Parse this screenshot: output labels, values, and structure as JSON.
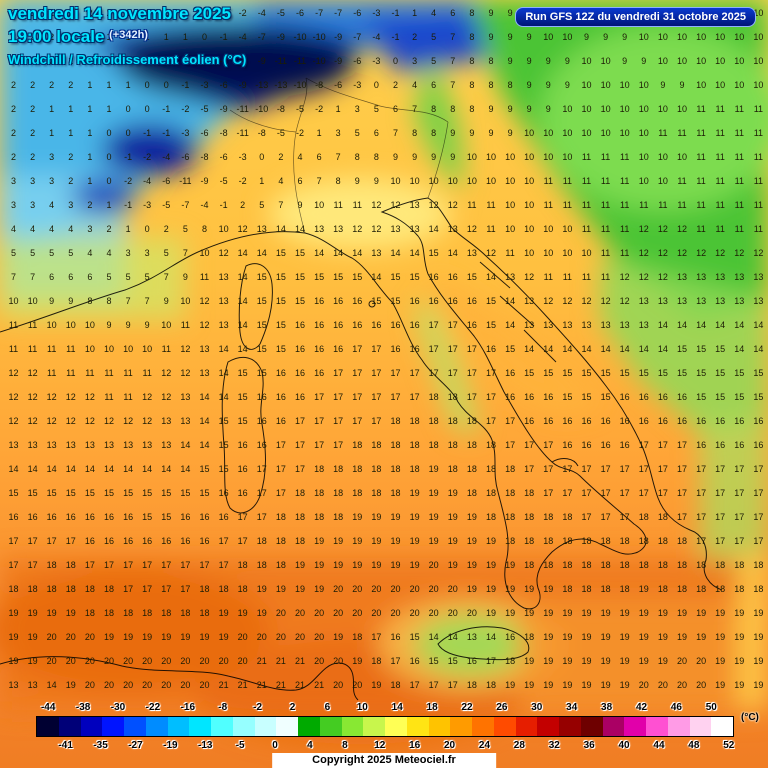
{
  "header": {
    "date_line": "vendredi 14 novembre 2025",
    "time_line": "19:00 locale",
    "offset_label": "(+342h)",
    "param_label": "Windchill / Refroidissement éolien (°C)",
    "run_label": "Run GFS 12Z du vendredi 31 octobre 2025"
  },
  "footer": {
    "copyright": "Copyright 2025 Meteociel.fr",
    "unit_label": "(°C)"
  },
  "colors": {
    "title_cyan": "#00e5ff",
    "run_box_bg": "#001478",
    "cold_navy": "#010a50",
    "warm_orange": "#f07d24"
  },
  "scale": {
    "top_labels": [
      "-44",
      "-38",
      "-30",
      "-22",
      "-16",
      "-8",
      "-2",
      "2",
      "6",
      "10",
      "14",
      "18",
      "22",
      "26",
      "30",
      "34",
      "38",
      "42",
      "46",
      "50"
    ],
    "bottom_labels": [
      "-41",
      "-35",
      "-27",
      "-19",
      "-13",
      "-5",
      "0",
      "4",
      "8",
      "12",
      "16",
      "20",
      "24",
      "28",
      "32",
      "36",
      "40",
      "44",
      "48",
      "52"
    ],
    "segments": [
      "#000032",
      "#000078",
      "#0000be",
      "#0014ff",
      "#0050ff",
      "#008cff",
      "#00beff",
      "#00e6ff",
      "#50ffff",
      "#96ffff",
      "#c8ffff",
      "#f0ffff",
      "#00aa00",
      "#44cc22",
      "#88e833",
      "#c8f64c",
      "#ffff55",
      "#ffe414",
      "#ffc300",
      "#ff9b00",
      "#ff7300",
      "#ff4b00",
      "#e61e00",
      "#c30000",
      "#960000",
      "#6e0000",
      "#aa0064",
      "#e100aa",
      "#ff50d2",
      "#ff9be6",
      "#ffd2f0",
      "#ffffff"
    ]
  },
  "map": {
    "grid_rows": [
      "3 3 2 2 2 2 1 1 2 2 1 1 -2 -4 -5 -6 -7 -7 -6 -3 -1 1 4 6 8 9 9 10 9 9 9 10 10 9 9 10 10 10 10 10",
      "3 2 2 2 2 1 1 1 1 1 0 -1 -4 -7 -9 -10 -10 -9 -7 -4 -1 2 5 7 8 9 9 9 10 10 9 9 9 10 10 10 10 10 10 10",
      "2 2 2 2 1 1 1 1 0 0 -1 -3 -6 -9 -11 -11 -10 -9 -6 -3 0 3 5 7 8 8 9 9 9 9 10 10 9 9 10 10 10 10 10 10",
      "2 2 2 2 1 1 1 0 0 -1 -3 -6 -9 -13 -13 -10 -8 -6 -3 0 2 4 6 7 8 8 8 9 9 9 10 10 10 10 9 9 10 10 10 10",
      "2 2 1 1 1 1 0 0 -1 -2 -5 -9 -11 -10 -8 -5 -2 1 3 5 6 7 8 8 8 9 9 9 9 10 10 10 10 10 10 10 11 11 11 11",
      "2 2 1 1 1 0 0 -1 -1 -3 -6 -8 -11 -8 -5 -2 1 3 5 6 7 8 8 9 9 9 9 10 10 10 10 10 10 10 11 11 11 11 11 11",
      "2 2 3 2 1 0 -1 -2 -4 -6 -8 -6 -3 0 2 4 6 7 8 8 9 9 9 9 10 10 10 10 10 10 11 11 11 10 10 10 11 11 11 11",
      "3 3 3 2 1 0 -2 -4 -6 -11 -9 -5 -2 1 4 6 7 8 9 9 10 10 10 10 10 10 10 10 11 11 11 11 11 10 10 11 11 11 11 11",
      "3 3 4 3 2 1 -1 -3 -5 -7 -4 -1 2 5 7 9 10 11 11 12 12 13 12 12 11 11 10 10 11 11 11 11 11 11 11 11 11 11 11 11",
      "4 4 4 4 3 2 1 0 2 5 8 10 12 13 14 14 13 13 12 12 13 13 14 13 12 11 10 10 10 10 11 11 11 12 12 12 11 11 11 11",
      "5 5 5 5 4 4 3 3 5 7 10 12 14 14 15 15 14 14 14 13 14 14 15 14 13 12 11 10 10 10 10 11 11 12 12 12 12 12 12 12",
      "7 7 6 6 6 5 5 5 7 9 11 13 14 15 15 15 15 15 15 14 15 15 16 16 15 14 13 12 11 11 11 11 12 12 12 13 13 13 13 13",
      "10 10 9 9 8 8 7 7 9 10 12 13 14 15 15 15 16 16 16 15 15 16 16 16 16 15 14 13 12 12 12 12 12 13 13 13 13 13 13 13",
      "11 11 10 10 10 9 9 9 10 11 12 13 14 15 15 16 16 16 16 16 16 16 17 17 16 15 14 13 13 13 13 13 13 13 14 14 14 14 14 14",
      "11 11 11 11 10 10 10 10 11 12 13 14 14 15 15 16 16 16 17 17 16 16 17 17 17 16 15 14 14 14 14 14 14 14 14 15 15 15 14 14",
      "12 12 11 11 11 11 11 11 12 12 13 14 15 15 16 16 16 17 17 17 17 17 17 17 17 17 16 15 15 15 15 15 15 15 15 15 15 15 15 15",
      "12 12 12 12 12 11 11 12 12 13 14 14 15 16 16 16 17 17 17 17 17 17 18 18 17 17 16 16 16 15 15 15 16 16 16 16 15 15 15 15",
      "12 12 12 12 12 12 12 12 13 13 14 15 15 16 16 17 17 17 17 17 18 18 18 18 18 17 17 16 16 16 16 16 16 16 16 16 16 16 16 16",
      "13 13 13 13 13 13 13 13 13 14 14 15 16 16 17 17 17 17 18 18 18 18 18 18 18 18 17 17 17 16 16 16 16 17 17 17 16 16 16 16",
      "14 14 14 14 14 14 14 14 14 14 15 15 16 17 17 17 18 18 18 18 18 18 19 18 18 18 18 17 17 17 17 17 17 17 17 17 17 17 17 17",
      "15 15 15 15 15 15 15 15 15 15 15 16 16 17 17 18 18 18 18 18 18 19 19 19 18 18 18 18 17 17 17 17 17 17 17 17 17 17 17 17",
      "16 16 16 16 16 16 16 15 15 16 16 16 17 17 18 18 18 18 19 19 19 19 19 19 19 18 18 18 18 18 17 17 17 18 18 17 17 17 17 17",
      "17 17 17 17 16 16 16 16 16 16 16 17 17 18 18 18 19 19 19 19 19 19 19 19 19 19 18 18 18 18 18 18 18 18 18 18 17 17 17 17",
      "17 17 18 18 17 17 17 17 17 17 17 17 18 18 18 19 19 19 19 19 19 19 20 19 19 19 19 18 18 18 18 18 18 18 18 18 18 18 18 18",
      "18 18 18 18 18 18 17 17 17 17 18 18 18 19 19 19 19 20 20 20 20 20 20 20 19 19 19 19 19 18 18 18 18 19 18 18 18 18 18 18",
      "19 19 19 19 18 18 18 18 18 18 18 19 19 19 20 20 20 20 20 20 20 20 20 20 20 19 19 19 19 19 19 19 19 19 19 19 19 19 19 19",
      "19 19 20 20 20 19 19 19 19 19 19 19 20 20 20 20 20 19 18 17 16 15 14 14 13 14 16 18 19 19 19 19 19 19 19 19 19 19 19 19",
      "19 19 20 20 20 20 20 20 20 20 20 20 20 21 21 21 20 20 19 18 17 16 15 15 16 17 18 19 19 19 19 19 19 19 19 20 20 19 19 19",
      "13 13 14 19 20 20 20 20 20 20 20 21 21 21 21 21 21 20 20 19 18 17 17 17 18 18 19 19 19 19 19 19 19 20 20 20 20 19 19 19"
    ]
  }
}
